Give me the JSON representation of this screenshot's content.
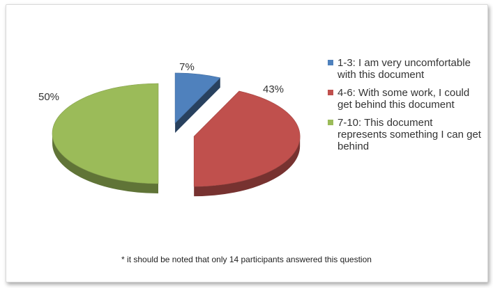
{
  "chart_data": {
    "type": "pie",
    "title": "",
    "series": [
      {
        "label": "1-3: I am very uncomfortable with this document",
        "value": 7,
        "value_label": "7%",
        "color": "#4f81bd"
      },
      {
        "label": "4-6: With some work, I could get behind this document",
        "value": 43,
        "value_label": "43%",
        "color": "#c0504d"
      },
      {
        "label": "7-10: This document represents something I can get behind",
        "value": 50,
        "value_label": "50%",
        "color": "#9bbb59"
      }
    ],
    "legend_position": "right",
    "style": "3d-exploded"
  },
  "footnote": "* it should be noted that only 14 participants answered this question"
}
